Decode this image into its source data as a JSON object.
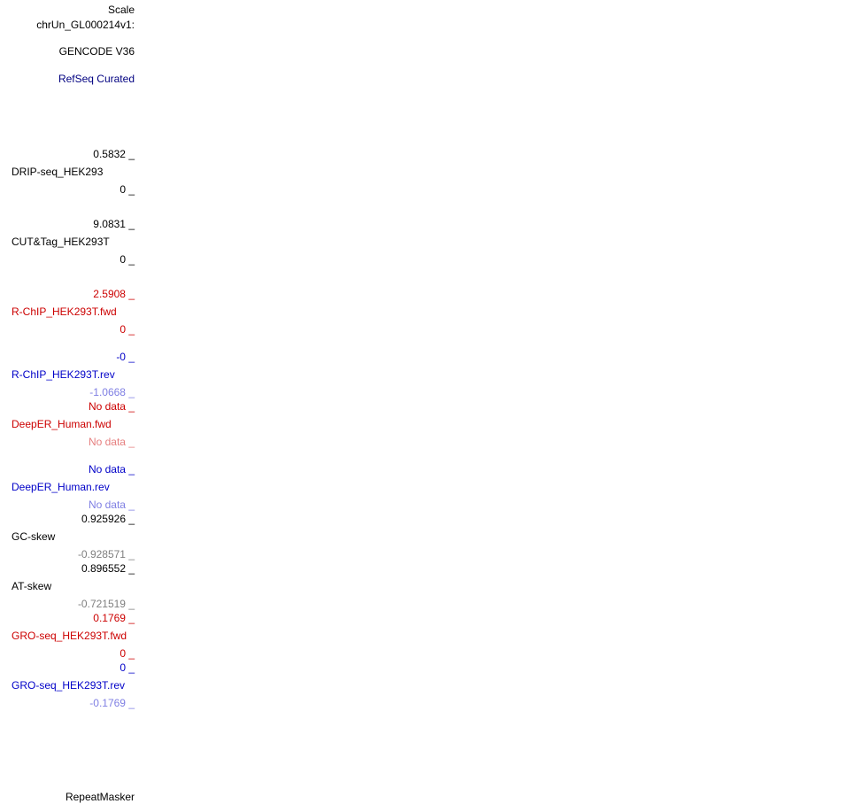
{
  "tracks": {
    "scale": "Scale",
    "chrom": "chrUn_GL000214v1:",
    "gencode": "GENCODE V36",
    "refseq": "RefSeq Curated",
    "drip": {
      "max": "0.5832 _",
      "name": "DRIP-seq_HEK293",
      "min": "0 _"
    },
    "cuttag": {
      "max": "9.0831 _",
      "name": "CUT&Tag_HEK293T",
      "min": "0 _"
    },
    "rchip_fwd": {
      "max": "2.5908 _",
      "name": "R-ChIP_HEK293T.fwd",
      "min": "0 _"
    },
    "rchip_rev": {
      "max": "-0 _",
      "name": "R-ChIP_HEK293T.rev",
      "min": "-1.0668 _"
    },
    "deeper_fwd": {
      "max": "No data _",
      "name": "DeepER_Human.fwd",
      "min": "No data _"
    },
    "deeper_rev": {
      "max": "No data _",
      "name": "DeepER_Human.rev",
      "min": "No data _"
    },
    "gcskew": {
      "max": "0.925926 _",
      "name": "GC-skew",
      "min": "-0.928571 _"
    },
    "atskew": {
      "max": "0.896552 _",
      "name": "AT-skew",
      "min": "-0.721519 _"
    },
    "gro_fwd": {
      "max": "0.1769 _",
      "name": "GRO-seq_HEK293T.fwd",
      "min": "0 _"
    },
    "gro_rev": {
      "max": "0 _",
      "name": "GRO-seq_HEK293T.rev",
      "min": "-0.1769 _"
    },
    "repeatmasker": "RepeatMasker"
  }
}
